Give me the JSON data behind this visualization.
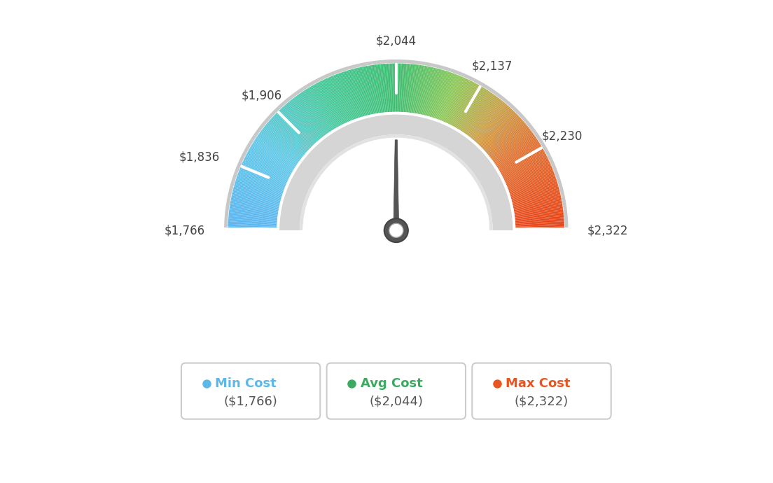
{
  "min_val": 1766,
  "avg_val": 2044,
  "max_val": 2322,
  "tick_labels": [
    "$1,766",
    "$1,836",
    "$1,906",
    "$2,044",
    "$2,137",
    "$2,230",
    "$2,322"
  ],
  "tick_values": [
    1766,
    1836,
    1906,
    2044,
    2137,
    2230,
    2322
  ],
  "legend": [
    {
      "label": "Min Cost",
      "value": "($1,766)",
      "color": "#5bb8e8"
    },
    {
      "label": "Avg Cost",
      "value": "($2,044)",
      "color": "#3baa60"
    },
    {
      "label": "Max Cost",
      "value": "($2,322)",
      "color": "#e85520"
    }
  ],
  "background_color": "#ffffff",
  "color_stops": [
    [
      0.0,
      "#5ab4f0"
    ],
    [
      0.18,
      "#60c8e8"
    ],
    [
      0.35,
      "#45c898"
    ],
    [
      0.5,
      "#3dbd70"
    ],
    [
      0.62,
      "#8cc858"
    ],
    [
      0.72,
      "#c8a048"
    ],
    [
      0.82,
      "#e07030"
    ],
    [
      1.0,
      "#e84015"
    ]
  ],
  "needle_color": "#555555",
  "track_color": "#d8d8d8",
  "track_inner_color": "#e8e8e8",
  "outer_border_color": "#cccccc"
}
